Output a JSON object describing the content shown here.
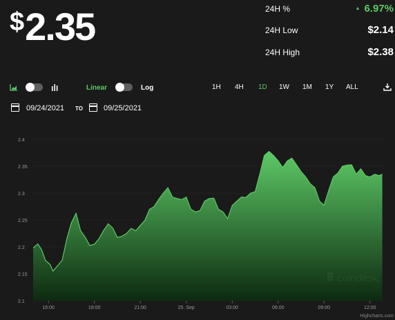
{
  "price": {
    "symbol": "$",
    "value": "2.35"
  },
  "stats": [
    {
      "label": "24H %",
      "value": "6.97%",
      "direction": "up"
    },
    {
      "label": "24H Low",
      "value": "$2.14"
    },
    {
      "label": "24H High",
      "value": "$2.38"
    }
  ],
  "toolbar": {
    "chart_type_icons": [
      "area-chart-icon",
      "bar-chart-icon"
    ],
    "scale_linear": "Linear",
    "scale_log": "Log",
    "ranges": [
      "1H",
      "4H",
      "1D",
      "1W",
      "1M",
      "1Y",
      "ALL"
    ],
    "active_range": "1D",
    "download_icon": "download-icon"
  },
  "date_range": {
    "from": "09/24/2021",
    "to_label": "TO",
    "to": "09/25/2021"
  },
  "watermark": "coindesk",
  "credit": "Highcharts.com",
  "colors": {
    "accent": "#5dc966",
    "background": "#1a1a1a",
    "area_top": "#5dc966",
    "area_bottom": "#0d2a10"
  },
  "chart_data": {
    "type": "area",
    "ylim": [
      2.1,
      2.4
    ],
    "y_ticks": [
      "2.1",
      "2.15",
      "2.2",
      "2.25",
      "2.3",
      "2.35",
      "2.4"
    ],
    "x_tick_labels": [
      "15:00",
      "18:00",
      "21:00",
      "25. Sep",
      "03:00",
      "06:00",
      "09:00",
      "12:00"
    ],
    "x_hours": [
      0,
      0.3,
      0.55,
      0.8,
      1.1,
      1.3,
      1.6,
      1.9,
      2.2,
      2.5,
      2.8,
      3.1,
      3.4,
      3.7,
      4.0,
      4.3,
      4.6,
      4.9,
      5.2,
      5.5,
      5.8,
      6.1,
      6.4,
      6.7,
      7.0,
      7.3,
      7.6,
      7.9,
      8.2,
      8.5,
      8.8,
      9.1,
      9.4,
      9.7,
      10.0,
      10.3,
      10.6,
      10.9,
      11.2,
      11.5,
      11.8,
      12.1,
      12.4,
      12.7,
      13.0,
      13.3,
      13.6,
      13.9,
      14.2,
      14.5,
      14.8,
      15.1,
      15.4,
      15.7,
      16.0,
      16.3,
      16.6,
      16.9,
      17.2,
      17.5,
      17.8,
      18.1,
      18.4,
      18.7,
      19.0,
      19.3,
      19.6,
      19.9,
      20.2,
      20.5,
      20.8,
      21.1,
      21.4,
      21.7,
      22.0,
      22.3,
      22.6,
      22.8
    ],
    "values": [
      2.198,
      2.208,
      2.19,
      2.175,
      2.165,
      2.16,
      2.165,
      2.178,
      2.21,
      2.245,
      2.26,
      2.235,
      2.218,
      2.205,
      2.2,
      2.215,
      2.228,
      2.248,
      2.235,
      2.22,
      2.215,
      2.225,
      2.232,
      2.235,
      2.24,
      2.252,
      2.265,
      2.275,
      2.286,
      2.305,
      2.31,
      2.295,
      2.285,
      2.288,
      2.29,
      2.275,
      2.265,
      2.27,
      2.28,
      2.29,
      2.288,
      2.275,
      2.265,
      2.255,
      2.272,
      2.285,
      2.29,
      2.297,
      2.3,
      2.305,
      2.33,
      2.37,
      2.375,
      2.375,
      2.36,
      2.35,
      2.355,
      2.365,
      2.35,
      2.345,
      2.33,
      2.32,
      2.305,
      2.285,
      2.275,
      2.31,
      2.33,
      2.34,
      2.345,
      2.352,
      2.35,
      2.34,
      2.345,
      2.335,
      2.325,
      2.335,
      2.33,
      2.34
    ]
  }
}
